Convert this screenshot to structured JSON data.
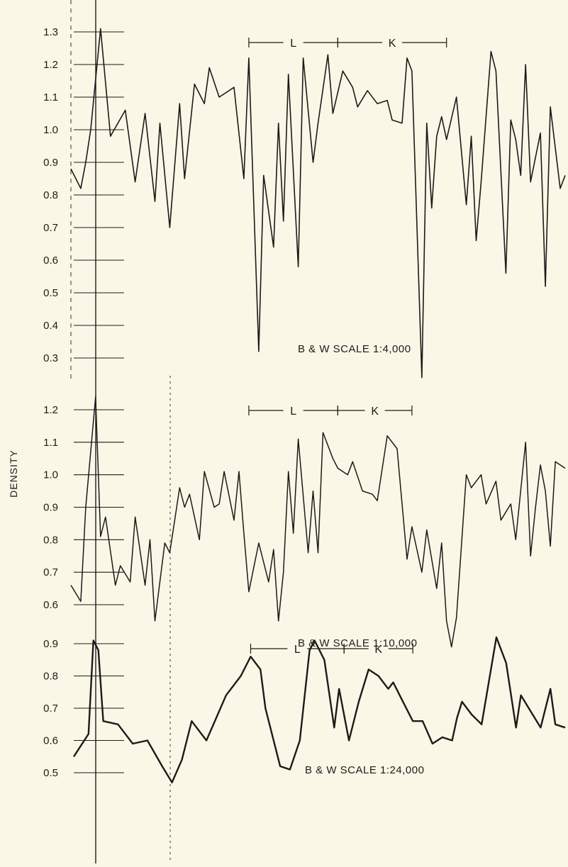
{
  "figure": {
    "ylabel": "DENSITY",
    "ink": "#1b1b1b",
    "paper": "#fbf7e6"
  },
  "chart_data": [
    {
      "type": "line",
      "caption": "B & W SCALE 1:4,000",
      "ylabel": "DENSITY",
      "ylim": [
        0.3,
        1.3
      ],
      "yticks": [
        "1.3",
        "1.2",
        "1.1",
        "1.0",
        "0.9",
        "0.8",
        "0.7",
        "0.6",
        "0.5",
        "0.4",
        "0.3"
      ],
      "zones": [
        {
          "label": "L",
          "from": 36,
          "to": 54
        },
        {
          "label": "K",
          "from": 54,
          "to": 76
        }
      ],
      "x": [
        0,
        2,
        3,
        4,
        6,
        8,
        11,
        13,
        15,
        17,
        18,
        20,
        22,
        23,
        25,
        27,
        28,
        30,
        33,
        35,
        36,
        38,
        39,
        41,
        42,
        43,
        44,
        46,
        47,
        49,
        50,
        52,
        53,
        55,
        57,
        58,
        60,
        62,
        64,
        65,
        67,
        68,
        69,
        71,
        72,
        73,
        74,
        75,
        76,
        78,
        80,
        81,
        82,
        83,
        85,
        86,
        88,
        89,
        90,
        91,
        92,
        93,
        95,
        96,
        97,
        99,
        100
      ],
      "values": [
        0.88,
        0.82,
        0.9,
        1.0,
        1.31,
        0.98,
        1.06,
        0.84,
        1.05,
        0.78,
        1.02,
        0.7,
        1.08,
        0.85,
        1.14,
        1.08,
        1.19,
        1.1,
        1.13,
        0.85,
        1.22,
        0.32,
        0.86,
        0.64,
        1.02,
        0.72,
        1.17,
        0.58,
        1.22,
        0.9,
        1.02,
        1.23,
        1.05,
        1.18,
        1.13,
        1.07,
        1.12,
        1.08,
        1.09,
        1.03,
        1.02,
        1.22,
        1.18,
        0.24,
        1.02,
        0.76,
        0.98,
        1.04,
        0.97,
        1.1,
        0.77,
        0.98,
        0.66,
        0.84,
        1.24,
        1.18,
        0.56,
        1.03,
        0.97,
        0.86,
        1.2,
        0.84,
        0.99,
        0.52,
        1.07,
        0.82,
        0.86
      ]
    },
    {
      "type": "line",
      "caption": "B & W SCALE 1:10,000",
      "ylabel": "DENSITY",
      "ylim": [
        0.6,
        1.2
      ],
      "yticks": [
        "1.2",
        "1.1",
        "1.0",
        "0.9",
        "0.8",
        "0.7",
        "0.6"
      ],
      "zones": [
        {
          "label": "L",
          "from": 36,
          "to": 54
        },
        {
          "label": "K",
          "from": 54,
          "to": 69
        }
      ],
      "x": [
        0,
        2,
        3,
        5,
        6,
        7,
        9,
        10,
        12,
        13,
        15,
        16,
        17,
        19,
        20,
        22,
        23,
        24,
        26,
        27,
        29,
        30,
        31,
        33,
        34,
        35,
        36,
        38,
        40,
        41,
        42,
        43,
        44,
        45,
        46,
        48,
        49,
        50,
        51,
        53,
        54,
        56,
        57,
        59,
        61,
        62,
        64,
        66,
        68,
        69,
        71,
        72,
        74,
        75,
        76,
        77,
        78,
        80,
        81,
        83,
        84,
        86,
        87,
        89,
        90,
        92,
        93,
        94,
        95,
        96,
        97,
        98,
        100
      ],
      "values": [
        0.66,
        0.61,
        0.9,
        1.24,
        0.81,
        0.87,
        0.66,
        0.72,
        0.67,
        0.87,
        0.66,
        0.8,
        0.55,
        0.79,
        0.76,
        0.96,
        0.9,
        0.94,
        0.8,
        1.01,
        0.9,
        0.91,
        1.01,
        0.86,
        1.01,
        0.82,
        0.64,
        0.79,
        0.67,
        0.77,
        0.55,
        0.7,
        1.01,
        0.82,
        1.11,
        0.76,
        0.95,
        0.76,
        1.13,
        1.05,
        1.02,
        1.0,
        1.04,
        0.95,
        0.94,
        0.92,
        1.12,
        1.08,
        0.74,
        0.84,
        0.7,
        0.83,
        0.65,
        0.79,
        0.55,
        0.47,
        0.56,
        1.0,
        0.96,
        1.0,
        0.91,
        0.98,
        0.86,
        0.91,
        0.8,
        1.1,
        0.75,
        0.9,
        1.03,
        0.95,
        0.78,
        1.04,
        1.02
      ]
    },
    {
      "type": "line",
      "caption": "B & W SCALE 1:24,000",
      "ylabel": "DENSITY",
      "ylim": [
        0.5,
        0.9
      ],
      "yticks": [
        "0.9",
        "0.8",
        "0.7",
        "0.6",
        "0.5"
      ],
      "zones": [
        {
          "label": "L",
          "from": 36,
          "to": 55
        },
        {
          "label": "K",
          "from": 55,
          "to": 69
        }
      ],
      "x": [
        0,
        3,
        4,
        5,
        6,
        9,
        12,
        15,
        18,
        20,
        22,
        24,
        27,
        29,
        31,
        34,
        36,
        38,
        39,
        42,
        44,
        46,
        48,
        49,
        51,
        53,
        54,
        56,
        58,
        60,
        62,
        64,
        65,
        67,
        69,
        71,
        73,
        75,
        77,
        78,
        79,
        81,
        83,
        86,
        88,
        90,
        91,
        93,
        95,
        97,
        98,
        100
      ],
      "values": [
        0.55,
        0.62,
        0.91,
        0.88,
        0.66,
        0.65,
        0.59,
        0.6,
        0.52,
        0.47,
        0.54,
        0.66,
        0.6,
        0.67,
        0.74,
        0.8,
        0.86,
        0.82,
        0.7,
        0.52,
        0.51,
        0.6,
        0.88,
        0.91,
        0.85,
        0.64,
        0.76,
        0.6,
        0.72,
        0.82,
        0.8,
        0.76,
        0.78,
        0.72,
        0.66,
        0.66,
        0.59,
        0.61,
        0.6,
        0.67,
        0.72,
        0.68,
        0.65,
        0.92,
        0.84,
        0.64,
        0.74,
        0.69,
        0.64,
        0.76,
        0.65,
        0.64
      ]
    }
  ]
}
